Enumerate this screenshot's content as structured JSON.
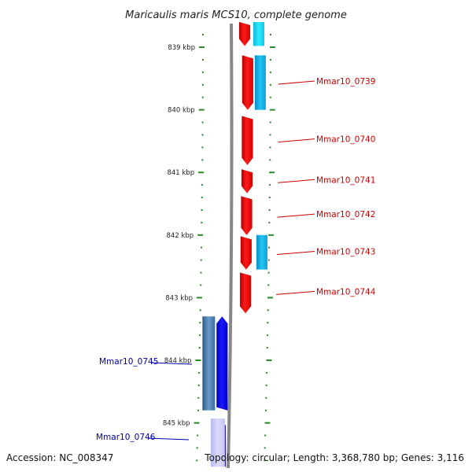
{
  "title": "Maricaulis maris MCS10, complete genome",
  "footer": {
    "accession": "Accession: NC_008347",
    "summary": "Topology: circular; Length: 3,368,780 bp; Genes: 3,116"
  },
  "axis": {
    "ticks": [
      "839 kbp",
      "840 kbp",
      "841 kbp",
      "842 kbp",
      "843 kbp",
      "844 kbp",
      "845 kbp"
    ]
  },
  "colors": {
    "backbone": "#888888",
    "tick": "#2a8a2a",
    "forward_gene": "#ff0000",
    "reverse_gene": "#0000ee",
    "forward_feature": "#1ab4e8",
    "reverse_feature": "#5a8ab8",
    "label_forward": "#cc0000",
    "label_reverse": "#0000aa"
  },
  "genes": [
    {
      "id": "g0738",
      "strand": "forward",
      "track": "gene",
      "start_kbp": 838.55,
      "end_kbp": 838.98,
      "label": ""
    },
    {
      "id": "g0739",
      "strand": "forward",
      "track": "gene",
      "start_kbp": 839.13,
      "end_kbp": 840.0,
      "label": "Mmar10_0739"
    },
    {
      "id": "g0740",
      "strand": "forward",
      "track": "gene",
      "start_kbp": 840.1,
      "end_kbp": 840.88,
      "label": "Mmar10_0740"
    },
    {
      "id": "g0741",
      "strand": "forward",
      "track": "gene",
      "start_kbp": 840.95,
      "end_kbp": 841.33,
      "label": "Mmar10_0741"
    },
    {
      "id": "g0742",
      "strand": "forward",
      "track": "gene",
      "start_kbp": 841.38,
      "end_kbp": 842.0,
      "label": "Mmar10_0742"
    },
    {
      "id": "g0743",
      "strand": "forward",
      "track": "gene",
      "start_kbp": 842.02,
      "end_kbp": 842.55,
      "label": "Mmar10_0743"
    },
    {
      "id": "g0744",
      "strand": "forward",
      "track": "gene",
      "start_kbp": 842.6,
      "end_kbp": 843.25,
      "label": "Mmar10_0744"
    },
    {
      "id": "g0745",
      "strand": "reverse",
      "track": "gene",
      "start_kbp": 843.3,
      "end_kbp": 844.8,
      "label": "Mmar10_0745"
    },
    {
      "id": "g0746",
      "strand": "reverse",
      "track": "gene",
      "start_kbp": 844.93,
      "end_kbp": 845.7,
      "label": "Mmar10_0746"
    }
  ],
  "features": [
    {
      "id": "f1",
      "strand": "forward",
      "start_kbp": 838.55,
      "end_kbp": 838.98
    },
    {
      "id": "f2",
      "strand": "forward",
      "start_kbp": 839.13,
      "end_kbp": 840.0
    },
    {
      "id": "f3",
      "strand": "forward",
      "start_kbp": 842.0,
      "end_kbp": 842.55
    },
    {
      "id": "f4",
      "strand": "reverse",
      "start_kbp": 843.3,
      "end_kbp": 844.8
    },
    {
      "id": "f5",
      "strand": "reverse",
      "start_kbp": 844.93,
      "end_kbp": 845.7
    }
  ]
}
